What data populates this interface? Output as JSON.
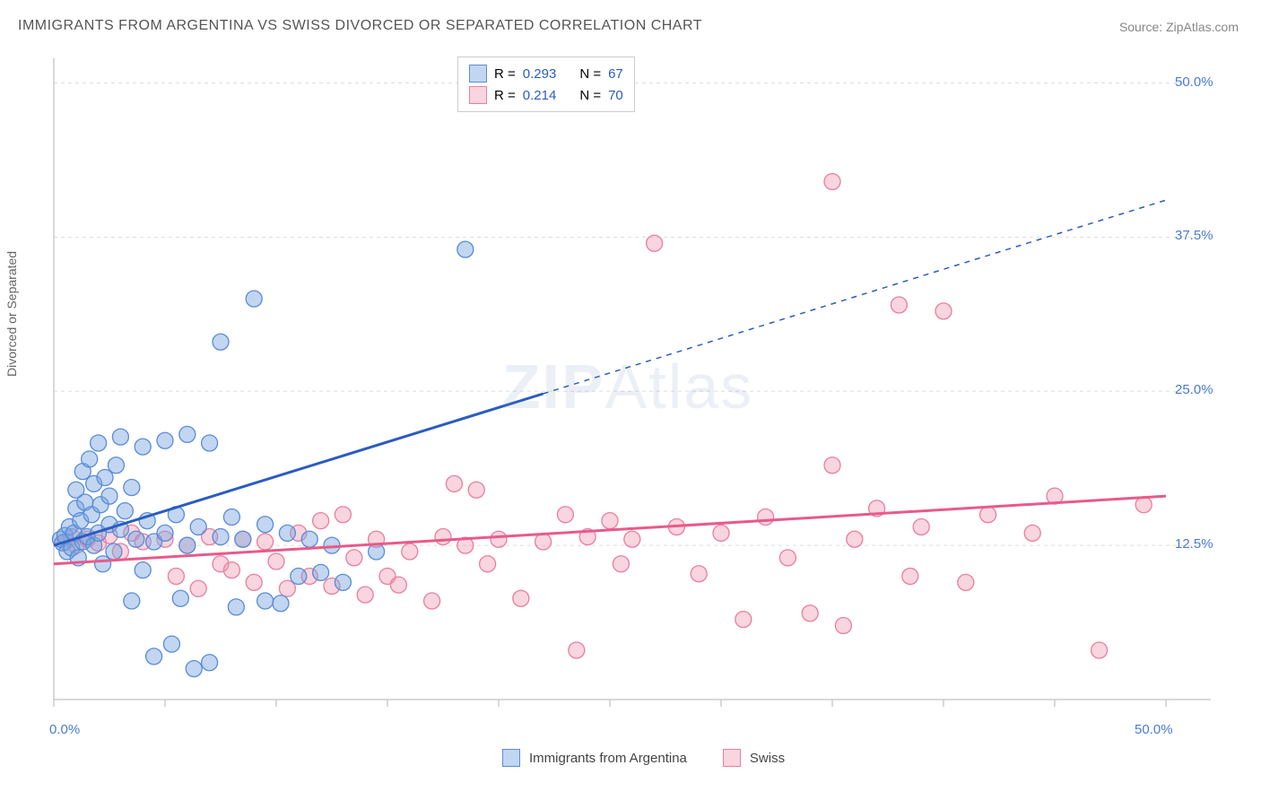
{
  "title": "IMMIGRANTS FROM ARGENTINA VS SWISS DIVORCED OR SEPARATED CORRELATION CHART",
  "source_prefix": "Source: ",
  "source_name": "ZipAtlas.com",
  "y_axis_label": "Divorced or Separated",
  "watermark": "ZIPAtlas",
  "chart": {
    "type": "scatter",
    "xlim": [
      0,
      50
    ],
    "ylim": [
      0,
      52
    ],
    "x_ticks": [
      0,
      5,
      10,
      15,
      20,
      25,
      30,
      35,
      40,
      45,
      50
    ],
    "x_tick_labels": {
      "0": "0.0%",
      "50": "50.0%"
    },
    "y_ticks": [
      12.5,
      25.0,
      37.5,
      50.0
    ],
    "y_tick_labels": {
      "12.5": "12.5%",
      "25.0": "25.0%",
      "37.5": "37.5%",
      "50.0": "50.0%"
    },
    "grid_color": "#dddddd",
    "axis_color": "#cccccc",
    "background_color": "#ffffff",
    "marker_radius": 9,
    "series": [
      {
        "name": "Immigrants from Argentina",
        "color_fill": "rgba(120,165,225,0.45)",
        "color_stroke": "#5a8cd8",
        "trend_color": "#2b5cc0",
        "trend": {
          "x1": 0,
          "y1": 12.5,
          "x2": 22,
          "y2": 24.8,
          "x_solid_end": 22,
          "x2_ext": 50,
          "y2_ext": 40.5
        },
        "R": "0.293",
        "N": "67",
        "points": [
          [
            0.3,
            13.0
          ],
          [
            0.4,
            12.7
          ],
          [
            0.5,
            13.3
          ],
          [
            0.6,
            12.0
          ],
          [
            0.7,
            14.0
          ],
          [
            0.8,
            12.3
          ],
          [
            0.9,
            13.5
          ],
          [
            1.0,
            15.5
          ],
          [
            1.0,
            17.0
          ],
          [
            1.1,
            11.5
          ],
          [
            1.2,
            14.5
          ],
          [
            1.3,
            18.5
          ],
          [
            1.3,
            12.8
          ],
          [
            1.4,
            16.0
          ],
          [
            1.5,
            13.2
          ],
          [
            1.6,
            19.5
          ],
          [
            1.7,
            15.0
          ],
          [
            1.8,
            12.5
          ],
          [
            1.8,
            17.5
          ],
          [
            2.0,
            20.8
          ],
          [
            2.0,
            13.5
          ],
          [
            2.1,
            15.8
          ],
          [
            2.2,
            11.0
          ],
          [
            2.3,
            18.0
          ],
          [
            2.5,
            14.2
          ],
          [
            2.5,
            16.5
          ],
          [
            2.7,
            12.0
          ],
          [
            2.8,
            19.0
          ],
          [
            3.0,
            21.3
          ],
          [
            3.0,
            13.8
          ],
          [
            3.2,
            15.3
          ],
          [
            3.5,
            17.2
          ],
          [
            3.5,
            8.0
          ],
          [
            3.7,
            13.0
          ],
          [
            4.0,
            20.5
          ],
          [
            4.0,
            10.5
          ],
          [
            4.2,
            14.5
          ],
          [
            4.5,
            12.8
          ],
          [
            4.5,
            3.5
          ],
          [
            5.0,
            21.0
          ],
          [
            5.0,
            13.5
          ],
          [
            5.3,
            4.5
          ],
          [
            5.5,
            15.0
          ],
          [
            5.7,
            8.2
          ],
          [
            6.0,
            21.5
          ],
          [
            6.0,
            12.5
          ],
          [
            6.3,
            2.5
          ],
          [
            6.5,
            14.0
          ],
          [
            7.0,
            20.8
          ],
          [
            7.0,
            3.0
          ],
          [
            7.5,
            13.2
          ],
          [
            7.5,
            29.0
          ],
          [
            8.0,
            14.8
          ],
          [
            8.2,
            7.5
          ],
          [
            8.5,
            13.0
          ],
          [
            9.0,
            32.5
          ],
          [
            9.5,
            8.0
          ],
          [
            9.5,
            14.2
          ],
          [
            10.2,
            7.8
          ],
          [
            10.5,
            13.5
          ],
          [
            11.0,
            10.0
          ],
          [
            11.5,
            13.0
          ],
          [
            12.0,
            10.3
          ],
          [
            12.5,
            12.5
          ],
          [
            13.0,
            9.5
          ],
          [
            14.5,
            12.0
          ],
          [
            18.5,
            36.5
          ]
        ]
      },
      {
        "name": "Swiss",
        "color_fill": "rgba(240,150,175,0.40)",
        "color_stroke": "#e87fa0",
        "trend_color": "#e85a8a",
        "trend": {
          "x1": 0,
          "y1": 11.0,
          "x2": 50,
          "y2": 16.5,
          "x_solid_end": 50,
          "x2_ext": 50,
          "y2_ext": 16.5
        },
        "R": "0.214",
        "N": "70",
        "points": [
          [
            0.5,
            12.8
          ],
          [
            0.8,
            13.2
          ],
          [
            1.0,
            12.5
          ],
          [
            1.5,
            13.0
          ],
          [
            2.0,
            12.7
          ],
          [
            2.5,
            13.3
          ],
          [
            3.0,
            12.0
          ],
          [
            3.5,
            13.5
          ],
          [
            4.0,
            12.8
          ],
          [
            5.0,
            13.0
          ],
          [
            5.5,
            10.0
          ],
          [
            6.0,
            12.5
          ],
          [
            6.5,
            9.0
          ],
          [
            7.0,
            13.2
          ],
          [
            7.5,
            11.0
          ],
          [
            8.0,
            10.5
          ],
          [
            8.5,
            13.0
          ],
          [
            9.0,
            9.5
          ],
          [
            9.5,
            12.8
          ],
          [
            10.0,
            11.2
          ],
          [
            10.5,
            9.0
          ],
          [
            11.0,
            13.5
          ],
          [
            11.5,
            10.0
          ],
          [
            12.0,
            14.5
          ],
          [
            12.5,
            9.2
          ],
          [
            13.0,
            15.0
          ],
          [
            13.5,
            11.5
          ],
          [
            14.0,
            8.5
          ],
          [
            14.5,
            13.0
          ],
          [
            15.0,
            10.0
          ],
          [
            15.5,
            9.3
          ],
          [
            16.0,
            12.0
          ],
          [
            17.0,
            8.0
          ],
          [
            17.5,
            13.2
          ],
          [
            18.0,
            17.5
          ],
          [
            18.5,
            12.5
          ],
          [
            19.0,
            17.0
          ],
          [
            19.5,
            11.0
          ],
          [
            20.0,
            13.0
          ],
          [
            21.0,
            8.2
          ],
          [
            22.0,
            12.8
          ],
          [
            23.0,
            15.0
          ],
          [
            23.5,
            4.0
          ],
          [
            24.0,
            13.2
          ],
          [
            25.0,
            14.5
          ],
          [
            25.5,
            11.0
          ],
          [
            26.0,
            13.0
          ],
          [
            27.0,
            37.0
          ],
          [
            28.0,
            14.0
          ],
          [
            29.0,
            10.2
          ],
          [
            30.0,
            13.5
          ],
          [
            31.0,
            6.5
          ],
          [
            32.0,
            14.8
          ],
          [
            33.0,
            11.5
          ],
          [
            34.0,
            7.0
          ],
          [
            35.0,
            42.0
          ],
          [
            35.0,
            19.0
          ],
          [
            35.5,
            6.0
          ],
          [
            36.0,
            13.0
          ],
          [
            37.0,
            15.5
          ],
          [
            38.0,
            32.0
          ],
          [
            38.5,
            10.0
          ],
          [
            39.0,
            14.0
          ],
          [
            40.0,
            31.5
          ],
          [
            41.0,
            9.5
          ],
          [
            42.0,
            15.0
          ],
          [
            44.0,
            13.5
          ],
          [
            45.0,
            16.5
          ],
          [
            47.0,
            4.0
          ],
          [
            49.0,
            15.8
          ]
        ]
      }
    ]
  },
  "legend_top": {
    "R_label": "R =",
    "N_label": "N ="
  },
  "legend_bottom": {
    "series1": "Immigrants from Argentina",
    "series2": "Swiss"
  }
}
